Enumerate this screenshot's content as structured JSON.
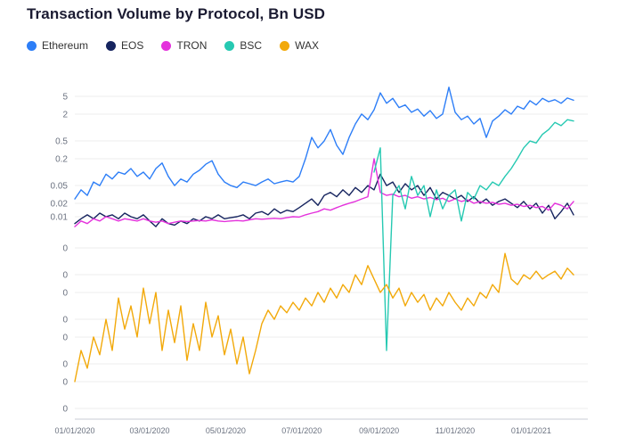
{
  "page": {
    "title": "Transaction Volume by Protocol, Bn USD"
  },
  "style": {
    "background": "#ffffff",
    "title_color": "#1b1b32",
    "legend_text_color": "#333333",
    "grid_color": "#ececec",
    "axis_color": "#c9ced4",
    "tick_text_color": "#6b7280"
  },
  "chart_data": {
    "type": "line",
    "title": "Transaction Volume by Protocol, Bn USD",
    "legend_position": "top-left",
    "grid": true,
    "y_axis": {
      "scale": "log",
      "unit": "Bn USD",
      "ticks": [
        {
          "value": 5,
          "label": "5"
        },
        {
          "value": 2,
          "label": "2"
        },
        {
          "value": 0.5,
          "label": "0.5"
        },
        {
          "value": 0.2,
          "label": "0.2"
        },
        {
          "value": 0.05,
          "label": "0.05"
        },
        {
          "value": 0.02,
          "label": "0.02"
        },
        {
          "value": 0.01,
          "label": "0.01"
        },
        {
          "value": 0.002,
          "label": "0"
        },
        {
          "value": 0.0005,
          "label": "0"
        },
        {
          "value": 0.0002,
          "label": "0"
        },
        {
          "value": 5e-05,
          "label": "0"
        },
        {
          "value": 2e-05,
          "label": "0"
        },
        {
          "value": 5e-06,
          "label": "0"
        },
        {
          "value": 2e-06,
          "label": "0"
        },
        {
          "value": 5e-07,
          "label": "0"
        }
      ]
    },
    "x_axis": {
      "unit": "date (days since 01/01/2020)",
      "ticks": [
        {
          "day": 0,
          "label": "01/01/2020"
        },
        {
          "day": 60,
          "label": "03/01/2020"
        },
        {
          "day": 121,
          "label": "05/01/2020"
        },
        {
          "day": 182,
          "label": "07/01/2020"
        },
        {
          "day": 244,
          "label": "09/01/2020"
        },
        {
          "day": 305,
          "label": "11/01/2020"
        },
        {
          "day": 366,
          "label": "01/01/2021"
        }
      ]
    },
    "x_days": [
      0,
      5,
      10,
      15,
      20,
      25,
      30,
      35,
      40,
      45,
      50,
      55,
      60,
      65,
      70,
      75,
      80,
      85,
      90,
      95,
      100,
      105,
      110,
      115,
      120,
      125,
      130,
      135,
      140,
      145,
      150,
      155,
      160,
      165,
      170,
      175,
      180,
      185,
      190,
      195,
      200,
      205,
      210,
      215,
      220,
      225,
      230,
      235,
      240,
      245,
      250,
      255,
      260,
      265,
      270,
      275,
      280,
      285,
      290,
      295,
      300,
      305,
      310,
      315,
      320,
      325,
      330,
      335,
      340,
      345,
      350,
      355,
      360,
      365,
      370,
      375,
      380,
      385,
      390,
      395,
      400
    ],
    "series": [
      {
        "name": "Ethereum",
        "color": "#2d7ef7",
        "values": [
          0.025,
          0.04,
          0.03,
          0.06,
          0.05,
          0.09,
          0.07,
          0.1,
          0.09,
          0.12,
          0.08,
          0.1,
          0.07,
          0.12,
          0.16,
          0.08,
          0.05,
          0.07,
          0.06,
          0.09,
          0.11,
          0.15,
          0.18,
          0.09,
          0.06,
          0.05,
          0.045,
          0.06,
          0.055,
          0.05,
          0.06,
          0.07,
          0.055,
          0.06,
          0.065,
          0.06,
          0.08,
          0.2,
          0.6,
          0.35,
          0.5,
          0.9,
          0.4,
          0.25,
          0.6,
          1.2,
          2.0,
          1.5,
          2.5,
          6.0,
          3.5,
          4.5,
          2.8,
          3.2,
          2.2,
          2.6,
          1.8,
          2.4,
          1.6,
          2.0,
          8.0,
          2.2,
          1.5,
          1.8,
          1.2,
          1.6,
          0.6,
          1.4,
          1.8,
          2.5,
          2.0,
          3.0,
          2.6,
          4.0,
          3.2,
          4.5,
          3.8,
          4.2,
          3.5,
          4.6,
          4.1
        ]
      },
      {
        "name": "EOS",
        "color": "#16245f",
        "values": [
          0.007,
          0.009,
          0.011,
          0.009,
          0.012,
          0.01,
          0.011,
          0.009,
          0.012,
          0.01,
          0.009,
          0.011,
          0.008,
          0.006,
          0.009,
          0.007,
          0.0065,
          0.008,
          0.007,
          0.009,
          0.008,
          0.01,
          0.009,
          0.011,
          0.009,
          0.0095,
          0.01,
          0.011,
          0.009,
          0.012,
          0.013,
          0.011,
          0.015,
          0.012,
          0.014,
          0.013,
          0.016,
          0.02,
          0.025,
          0.018,
          0.03,
          0.035,
          0.028,
          0.04,
          0.03,
          0.045,
          0.035,
          0.05,
          0.04,
          0.09,
          0.05,
          0.06,
          0.035,
          0.055,
          0.04,
          0.05,
          0.03,
          0.045,
          0.025,
          0.035,
          0.03,
          0.025,
          0.03,
          0.022,
          0.028,
          0.02,
          0.025,
          0.018,
          0.022,
          0.025,
          0.02,
          0.016,
          0.022,
          0.015,
          0.02,
          0.012,
          0.018,
          0.009,
          0.013,
          0.02,
          0.011
        ]
      },
      {
        "name": "TRON",
        "color": "#e432dc",
        "values": [
          0.006,
          0.008,
          0.007,
          0.009,
          0.008,
          0.01,
          0.009,
          0.008,
          0.009,
          0.0085,
          0.008,
          0.009,
          0.008,
          0.0075,
          0.008,
          0.007,
          0.0075,
          0.008,
          0.0078,
          0.008,
          0.0082,
          0.008,
          0.0085,
          0.008,
          0.0078,
          0.008,
          0.0082,
          0.008,
          0.0085,
          0.009,
          0.0088,
          0.009,
          0.0092,
          0.009,
          0.0095,
          0.01,
          0.0098,
          0.011,
          0.012,
          0.013,
          0.015,
          0.014,
          0.016,
          0.018,
          0.02,
          0.022,
          0.025,
          0.028,
          0.2,
          0.035,
          0.03,
          0.032,
          0.028,
          0.03,
          0.026,
          0.028,
          0.025,
          0.027,
          0.024,
          0.026,
          0.022,
          0.025,
          0.022,
          0.024,
          0.02,
          0.022,
          0.02,
          0.021,
          0.019,
          0.02,
          0.018,
          0.019,
          0.017,
          0.018,
          0.016,
          0.017,
          0.014,
          0.02,
          0.018,
          0.015,
          0.022
        ]
      },
      {
        "name": "BSC",
        "color": "#26c9b2",
        "values": [
          null,
          null,
          null,
          null,
          null,
          null,
          null,
          null,
          null,
          null,
          null,
          null,
          null,
          null,
          null,
          null,
          null,
          null,
          null,
          null,
          null,
          null,
          null,
          null,
          null,
          null,
          null,
          null,
          null,
          null,
          null,
          null,
          null,
          null,
          null,
          null,
          null,
          null,
          null,
          null,
          null,
          null,
          null,
          null,
          null,
          null,
          null,
          null,
          0.1,
          0.35,
          1e-05,
          0.03,
          0.05,
          0.015,
          0.08,
          0.03,
          0.05,
          0.01,
          0.04,
          0.015,
          0.03,
          0.04,
          0.008,
          0.035,
          0.025,
          0.05,
          0.04,
          0.06,
          0.05,
          0.08,
          0.12,
          0.2,
          0.35,
          0.5,
          0.45,
          0.7,
          0.9,
          1.3,
          1.1,
          1.5,
          1.4
        ]
      },
      {
        "name": "WAX",
        "color": "#f2a90a",
        "values": [
          2e-06,
          1e-05,
          4e-06,
          2e-05,
          8e-06,
          5e-05,
          1e-05,
          0.00015,
          3e-05,
          0.0001,
          2e-05,
          0.00025,
          4e-05,
          0.0002,
          1e-05,
          8e-05,
          1.5e-05,
          0.0001,
          6e-06,
          4e-05,
          1e-05,
          0.00012,
          2e-05,
          6e-05,
          8e-06,
          3e-05,
          5e-06,
          2e-05,
          3e-06,
          1e-05,
          4e-05,
          8e-05,
          5e-05,
          0.0001,
          7e-05,
          0.00012,
          8e-05,
          0.00015,
          0.0001,
          0.0002,
          0.00012,
          0.00025,
          0.00015,
          0.0003,
          0.0002,
          0.0005,
          0.0003,
          0.0008,
          0.0004,
          0.0002,
          0.0003,
          0.00015,
          0.00025,
          0.0001,
          0.0002,
          0.00012,
          0.00018,
          8e-05,
          0.00015,
          0.0001,
          0.0002,
          0.00012,
          8e-05,
          0.00015,
          0.0001,
          0.0002,
          0.00015,
          0.0003,
          0.0002,
          0.0015,
          0.0004,
          0.0003,
          0.0005,
          0.0004,
          0.0006,
          0.0004,
          0.0005,
          0.0006,
          0.0004,
          0.0007,
          0.0005
        ]
      }
    ]
  }
}
